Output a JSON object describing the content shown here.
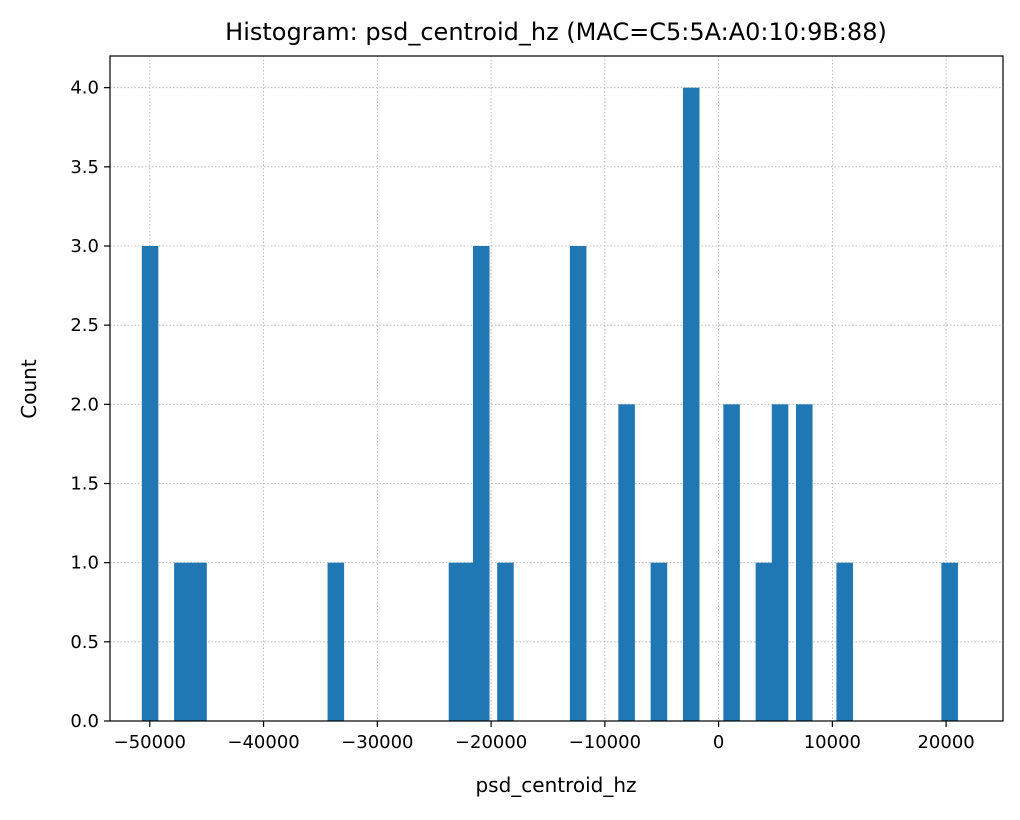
{
  "chart_data": {
    "type": "bar",
    "title": "Histogram: psd_centroid_hz (MAC=C5:5A:A0:10:9B:88)",
    "xlabel": "psd_centroid_hz",
    "ylabel": "Count",
    "xlim": [
      -53500,
      25000
    ],
    "ylim": [
      0,
      4.2
    ],
    "bin_width": 1420,
    "grid": true,
    "color": "#1f77b4",
    "x_ticks": [
      -50000,
      -40000,
      -30000,
      -20000,
      -10000,
      0,
      10000,
      20000
    ],
    "x_tick_labels": [
      "−50000",
      "−40000",
      "−30000",
      "−20000",
      "−10000",
      "0",
      "10000",
      "20000"
    ],
    "y_ticks": [
      0,
      0.5,
      1,
      1.5,
      2,
      2.5,
      3,
      3.5,
      4
    ],
    "y_tick_labels": [
      "0.0",
      "0.5",
      "1.0",
      "1.5",
      "2.0",
      "2.5",
      "3.0",
      "3.5",
      "4.0"
    ],
    "bins": [
      {
        "x": -49995,
        "count": 3
      },
      {
        "x": -47155,
        "count": 1
      },
      {
        "x": -45735,
        "count": 1
      },
      {
        "x": -33664,
        "count": 1
      },
      {
        "x": -23015,
        "count": 1
      },
      {
        "x": -21595,
        "count": 1
      },
      {
        "x": -20885,
        "count": 3
      },
      {
        "x": -18755,
        "count": 1
      },
      {
        "x": -12365,
        "count": 3
      },
      {
        "x": -8105,
        "count": 2
      },
      {
        "x": -5265,
        "count": 1
      },
      {
        "x": -2425,
        "count": 4
      },
      {
        "x": 1125,
        "count": 2
      },
      {
        "x": 3965,
        "count": 1
      },
      {
        "x": 5385,
        "count": 2
      },
      {
        "x": 7515,
        "count": 2
      },
      {
        "x": 11065,
        "count": 1
      },
      {
        "x": 20295,
        "count": 1
      }
    ]
  }
}
